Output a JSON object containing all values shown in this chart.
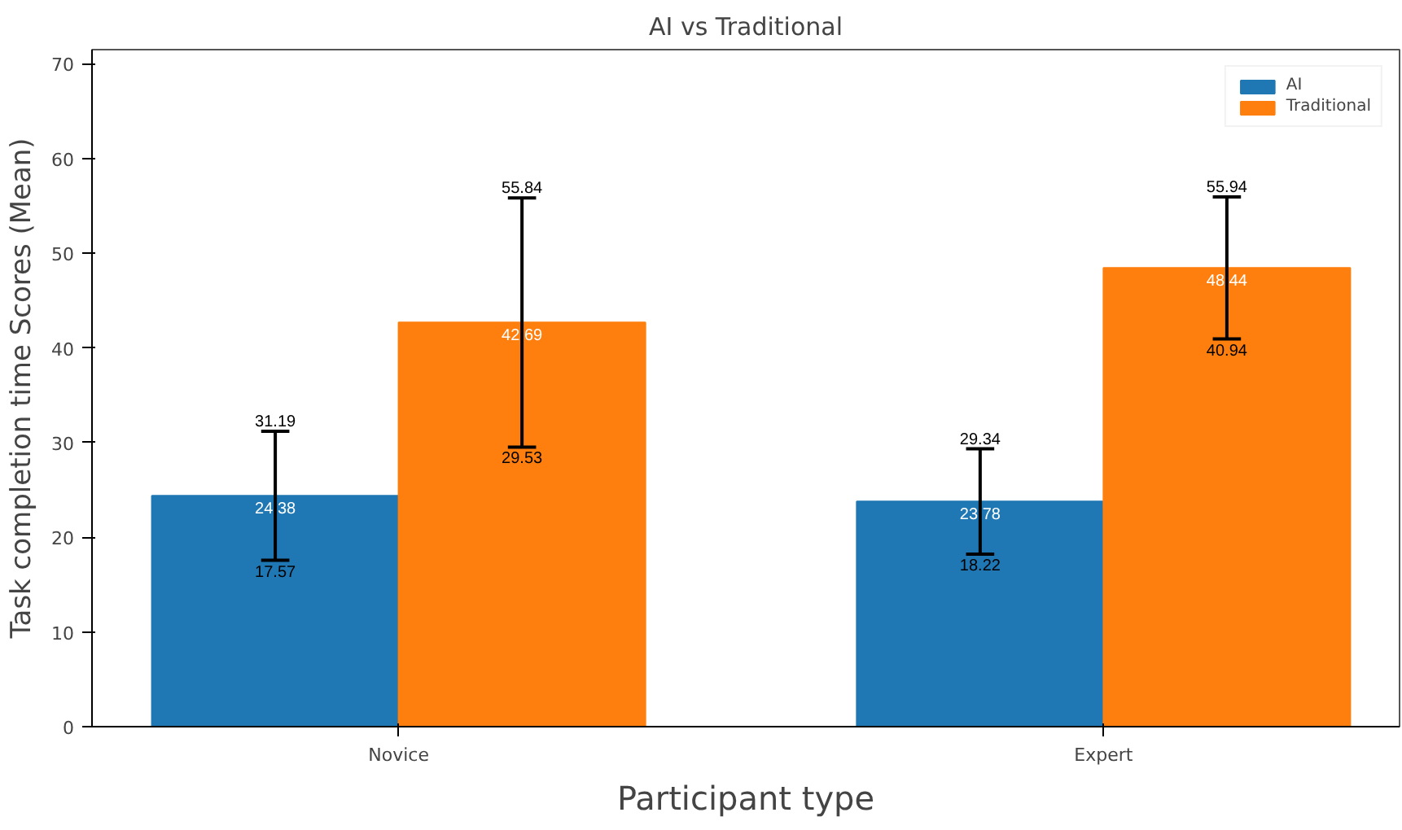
{
  "chart_data": {
    "type": "bar",
    "title": "AI vs Traditional",
    "xlabel": "Participant type",
    "ylabel": "Task completion time Scores (Mean)",
    "categories": [
      "Novice",
      "Expert"
    ],
    "series": [
      {
        "name": "AI",
        "color": "#1f77b4",
        "values": [
          24.38,
          23.78
        ],
        "errors": [
          [
            17.57,
            31.19
          ],
          [
            18.22,
            29.34
          ]
        ]
      },
      {
        "name": "Traditional",
        "color": "#ff7f0e",
        "values": [
          42.69,
          48.44
        ],
        "errors": [
          [
            29.53,
            55.84
          ],
          [
            40.94,
            55.94
          ]
        ]
      }
    ],
    "annotations": [
      "31.19",
      "17.57",
      "55.84",
      "29.53",
      "29.34",
      "18.22",
      "55.94",
      "40.94"
    ],
    "data_labels": true,
    "ylim": [
      0,
      71.5
    ],
    "yticks": [
      0,
      10,
      20,
      30,
      40,
      50,
      60,
      70
    ],
    "grid": false,
    "legend": "top right"
  }
}
